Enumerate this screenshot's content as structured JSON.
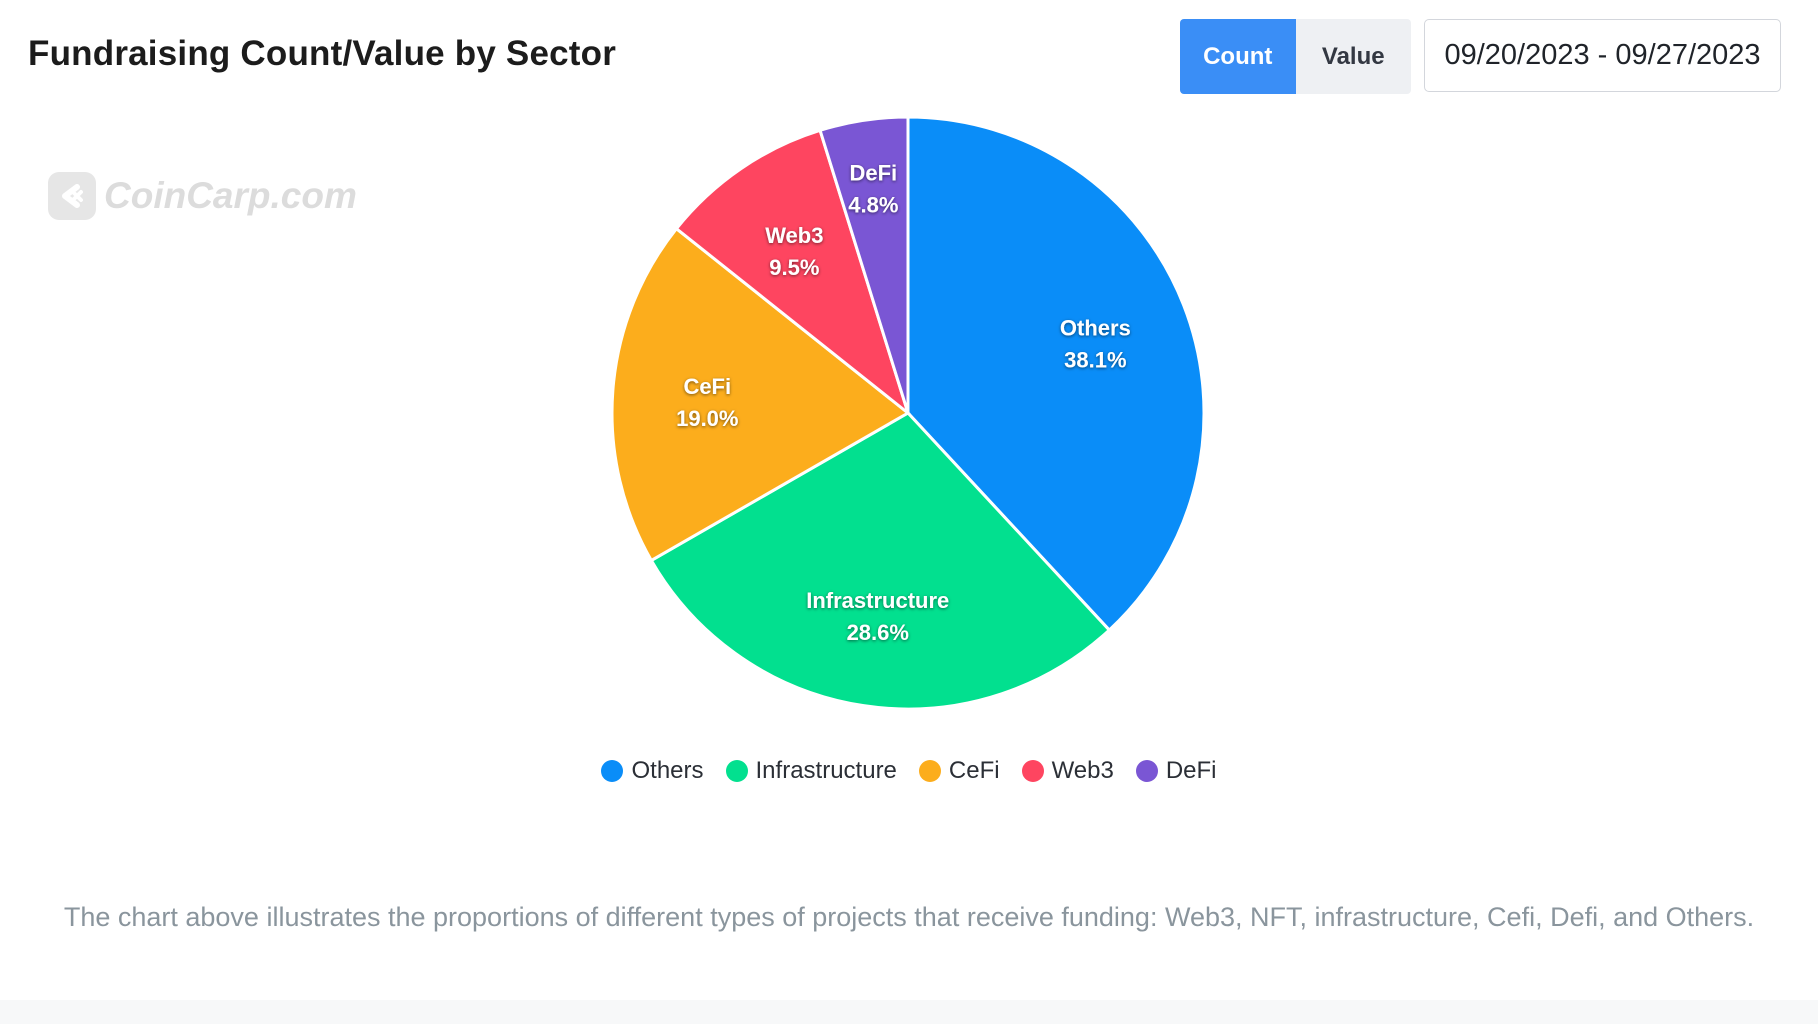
{
  "header": {
    "title": "Fundraising Count/Value by Sector",
    "toggle": {
      "count_label": "Count",
      "value_label": "Value"
    },
    "date_range": "09/20/2023 - 09/27/2023"
  },
  "watermark": {
    "text": "CoinCarp.com"
  },
  "caption": "The chart above illustrates the proportions of different types of projects that receive funding: Web3, NFT, infrastructure, Cefi, Defi, and Others.",
  "colors": {
    "accent": "#3a8ef6",
    "others": "#0a8df8",
    "infrastructure": "#02e08f",
    "cefi": "#fcad1c",
    "web3": "#fe4560",
    "defi": "#7a56d4"
  },
  "chart_data": {
    "type": "pie",
    "title": "Fundraising Count/Value by Sector",
    "categories": [
      "Others",
      "Infrastructure",
      "CeFi",
      "Web3",
      "DeFi"
    ],
    "values": [
      38.1,
      28.6,
      19.0,
      9.5,
      4.8
    ],
    "labels": [
      "38.1%",
      "28.6%",
      "19.0%",
      "9.5%",
      "4.8%"
    ],
    "colors": [
      "#0a8df8",
      "#02e08f",
      "#fcad1c",
      "#fe4560",
      "#7a56d4"
    ],
    "legend_position": "bottom"
  }
}
